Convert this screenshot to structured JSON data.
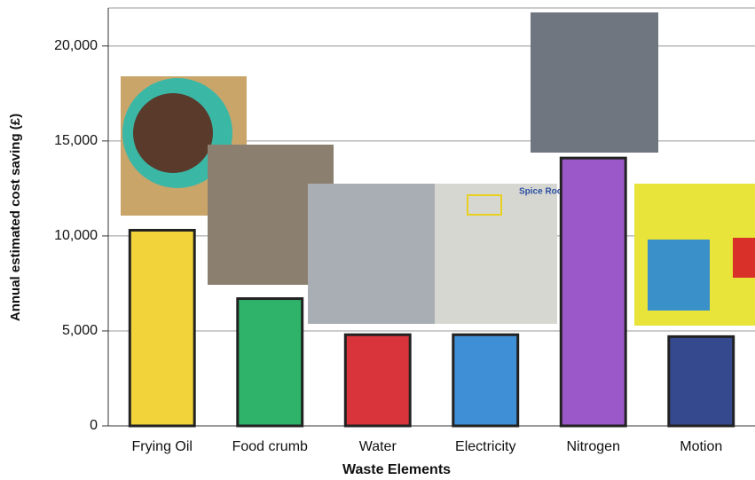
{
  "chart_data": {
    "type": "bar",
    "x_label": "Waste Elements",
    "y_label": "Annual estimated cost saving (£)",
    "categories": [
      "Frying Oil",
      "Food crumb",
      "Water",
      "Electricity",
      "Nitrogen",
      "Motion"
    ],
    "values": [
      10300,
      6700,
      4800,
      4800,
      14100,
      4700
    ],
    "colors": [
      "#f2d33a",
      "#2fb36a",
      "#d9333b",
      "#3f8fd6",
      "#9a58c8",
      "#35498f"
    ],
    "ylim": [
      0,
      22000
    ],
    "yticks": [
      0,
      {
        "value": 5000,
        "label": "5,000"
      },
      {
        "value": 10000,
        "label": "10,000"
      },
      {
        "value": 15000,
        "label": "15,000"
      },
      {
        "value": 20000,
        "label": "20,000"
      }
    ],
    "grid": true,
    "annotations": [
      "Spice Room"
    ]
  }
}
